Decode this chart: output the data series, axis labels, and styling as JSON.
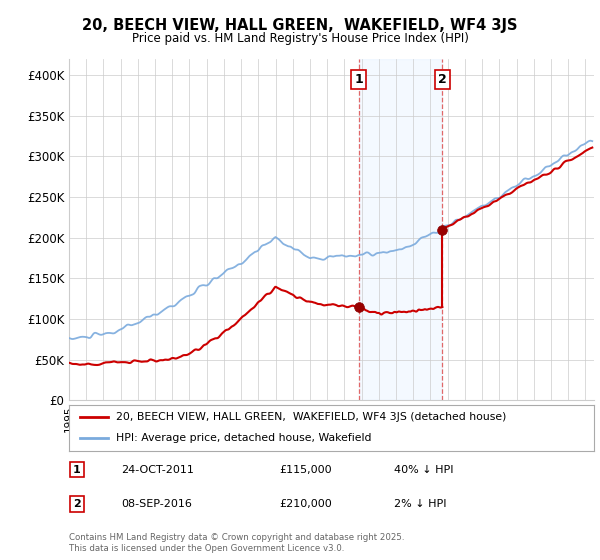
{
  "title": "20, BEECH VIEW, HALL GREEN,  WAKEFIELD, WF4 3JS",
  "subtitle": "Price paid vs. HM Land Registry's House Price Index (HPI)",
  "ylabel_ticks": [
    "£0",
    "£50K",
    "£100K",
    "£150K",
    "£200K",
    "£250K",
    "£300K",
    "£350K",
    "£400K"
  ],
  "ytick_values": [
    0,
    50000,
    100000,
    150000,
    200000,
    250000,
    300000,
    350000,
    400000
  ],
  "ylim": [
    0,
    420000
  ],
  "xlim_start": 1995.0,
  "xlim_end": 2025.5,
  "purchase1": {
    "date": "24-OCT-2011",
    "price": 115000,
    "label": "1",
    "year": 2011.82,
    "hpi_pct": "40% ↓ HPI"
  },
  "purchase2": {
    "date": "08-SEP-2016",
    "price": 210000,
    "label": "2",
    "year": 2016.69,
    "hpi_pct": "2% ↓ HPI"
  },
  "legend_line1": "20, BEECH VIEW, HALL GREEN,  WAKEFIELD, WF4 3JS (detached house)",
  "legend_line2": "HPI: Average price, detached house, Wakefield",
  "footer": "Contains HM Land Registry data © Crown copyright and database right 2025.\nThis data is licensed under the Open Government Licence v3.0.",
  "line_color_red": "#cc0000",
  "line_color_blue": "#7aaadd",
  "dot_color_red": "#990000",
  "shading_color": "#ddeeff",
  "grid_color": "#cccccc",
  "bg_color": "#ffffff"
}
